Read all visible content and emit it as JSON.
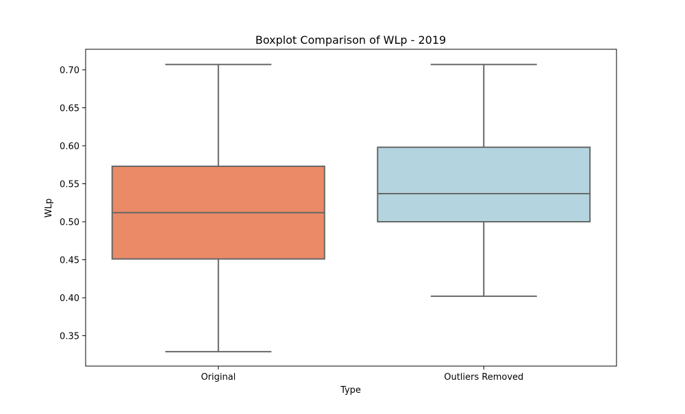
{
  "chart_data": {
    "type": "box",
    "title": "Boxplot Comparison of WLp - 2019",
    "xlabel": "Type",
    "ylabel": "WLp",
    "categories": [
      "Original",
      "Outliers Removed"
    ],
    "boxes": [
      {
        "category": "Original",
        "min": 0.329,
        "q1": 0.451,
        "median": 0.512,
        "q3": 0.573,
        "max": 0.707,
        "color": "#EA8A67"
      },
      {
        "category": "Outliers Removed",
        "min": 0.402,
        "q1": 0.5,
        "median": 0.537,
        "q3": 0.598,
        "max": 0.707,
        "color": "#B4D5DF"
      }
    ],
    "ylim": [
      0.31,
      0.727
    ],
    "yticks": [
      0.35,
      0.4,
      0.45,
      0.5,
      0.55,
      0.6,
      0.65,
      0.7
    ],
    "ytick_labels": [
      "0.35",
      "0.40",
      "0.45",
      "0.50",
      "0.55",
      "0.60",
      "0.65",
      "0.70"
    ],
    "grid": false,
    "line_color": "#666666"
  }
}
